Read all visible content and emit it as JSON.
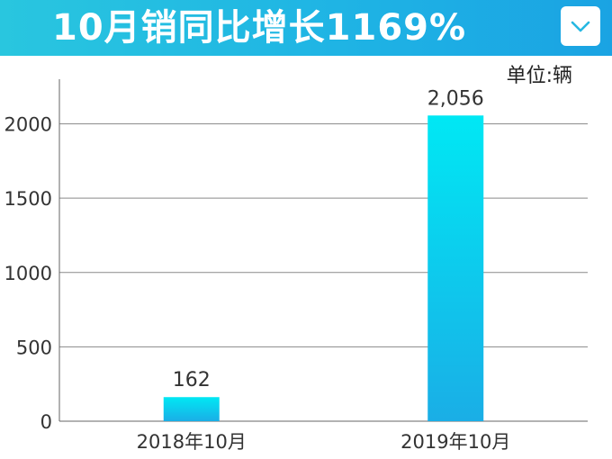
{
  "header": {
    "title": "10月销同比增长1169%",
    "dropdown_icon": "chevron-down-icon",
    "colors": {
      "start": "#29c6df",
      "end": "#1aa3e3"
    }
  },
  "unit_label": "单位:辆",
  "chart_data": {
    "type": "bar",
    "title": "10月销同比增长1169%",
    "categories": [
      "2018年10月",
      "2019年10月"
    ],
    "values": [
      162,
      2056
    ],
    "data_labels": [
      "162",
      "2,056"
    ],
    "xlabel": "",
    "ylabel": "",
    "ylim": [
      0,
      2300
    ],
    "yticks": [
      0,
      500,
      1000,
      1500,
      2000
    ],
    "grid": true,
    "legend": "none",
    "unit": "单位:辆",
    "bar_color_top": "#00e8f4",
    "bar_color_bottom": "#1aaee6"
  }
}
